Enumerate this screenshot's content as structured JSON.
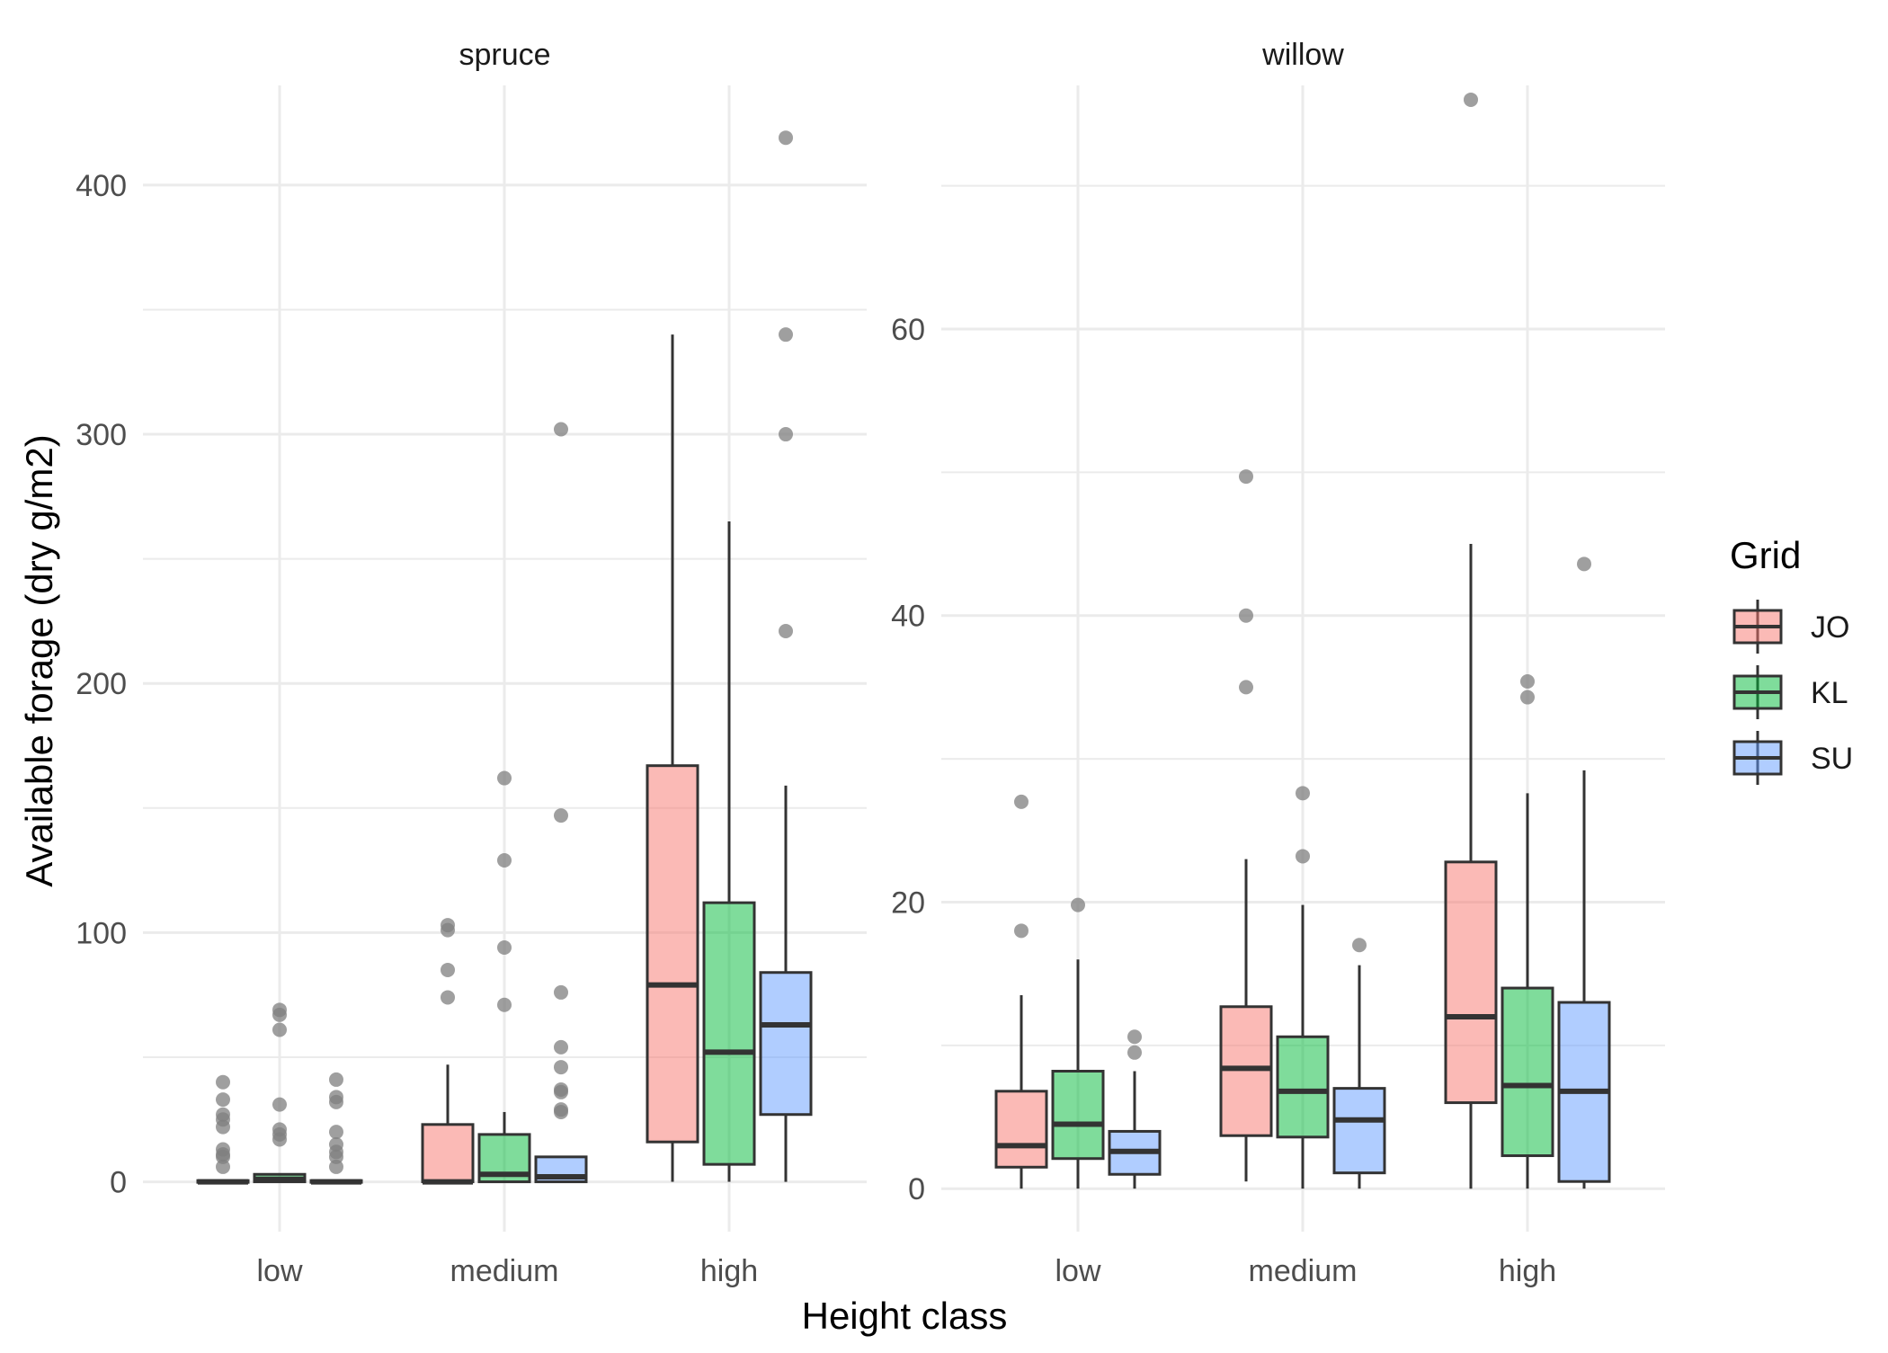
{
  "chart_data": {
    "type": "boxplot",
    "xlabel": "Height class",
    "ylabel": "Available forage (dry g/m2)",
    "categories": [
      "low",
      "medium",
      "high"
    ],
    "legend": {
      "title": "Grid",
      "position": "right",
      "entries": [
        {
          "name": "JO",
          "color": "#F8766D"
        },
        {
          "name": "KL",
          "color": "#00BA38"
        },
        {
          "name": "SU",
          "color": "#619CFF"
        }
      ]
    },
    "grid": true,
    "panels": [
      {
        "title": "spruce",
        "ylim": [
          -20,
          440
        ],
        "yticks": [
          0,
          100,
          200,
          300,
          400
        ],
        "ytick_labels": [
          "0",
          "100",
          "200",
          "300",
          "400"
        ],
        "boxes": [
          {
            "category": "low",
            "group": "JO",
            "lower": 0,
            "q1": 0,
            "median": 0,
            "q3": 0.5,
            "upper": 0.5,
            "outliers": [
              40,
              33,
              27,
              25,
              22,
              13,
              11,
              10,
              6
            ]
          },
          {
            "category": "low",
            "group": "KL",
            "lower": 0,
            "q1": 0,
            "median": 1,
            "q3": 3,
            "upper": 3,
            "outliers": [
              69,
              67,
              61,
              31,
              21,
              19,
              17
            ]
          },
          {
            "category": "low",
            "group": "SU",
            "lower": 0,
            "q1": 0,
            "median": 0,
            "q3": 0.5,
            "upper": 0.5,
            "outliers": [
              41,
              34,
              32,
              20,
              15,
              12,
              10,
              6
            ]
          },
          {
            "category": "medium",
            "group": "JO",
            "lower": 0,
            "q1": 0,
            "median": 0,
            "q3": 23,
            "upper": 47,
            "outliers": [
              103,
              101,
              85,
              74
            ]
          },
          {
            "category": "medium",
            "group": "KL",
            "lower": 0,
            "q1": 0,
            "median": 3,
            "q3": 19,
            "upper": 28,
            "outliers": [
              162,
              129,
              94,
              71
            ]
          },
          {
            "category": "medium",
            "group": "SU",
            "lower": 0,
            "q1": 0,
            "median": 2,
            "q3": 10,
            "upper": 10,
            "outliers": [
              302,
              147,
              76,
              54,
              46,
              37,
              36,
              29,
              28
            ]
          },
          {
            "category": "high",
            "group": "JO",
            "lower": 0,
            "q1": 16,
            "median": 79,
            "q3": 167,
            "upper": 340,
            "outliers": []
          },
          {
            "category": "high",
            "group": "KL",
            "lower": 0,
            "q1": 7,
            "median": 52,
            "q3": 112,
            "upper": 265,
            "outliers": []
          },
          {
            "category": "high",
            "group": "SU",
            "lower": 0,
            "q1": 27,
            "median": 63,
            "q3": 84,
            "upper": 159,
            "outliers": [
              419,
              340,
              300,
              221
            ]
          }
        ]
      },
      {
        "title": "willow",
        "ylim": [
          -3,
          77
        ],
        "yticks": [
          0,
          20,
          40,
          60
        ],
        "ytick_labels": [
          "0",
          "20",
          "40",
          "60"
        ],
        "boxes": [
          {
            "category": "low",
            "group": "JO",
            "lower": 0,
            "q1": 1.5,
            "median": 3,
            "q3": 6.8,
            "upper": 13.5,
            "outliers": [
              27,
              18
            ]
          },
          {
            "category": "low",
            "group": "KL",
            "lower": 0,
            "q1": 2.1,
            "median": 4.5,
            "q3": 8.2,
            "upper": 16,
            "outliers": [
              19.8
            ]
          },
          {
            "category": "low",
            "group": "SU",
            "lower": 0,
            "q1": 1,
            "median": 2.6,
            "q3": 4,
            "upper": 8.2,
            "outliers": [
              10.6,
              9.5
            ]
          },
          {
            "category": "medium",
            "group": "JO",
            "lower": 0.5,
            "q1": 3.7,
            "median": 8.4,
            "q3": 12.7,
            "upper": 23,
            "outliers": [
              49.7,
              40,
              35
            ]
          },
          {
            "category": "medium",
            "group": "KL",
            "lower": 0,
            "q1": 3.6,
            "median": 6.8,
            "q3": 10.6,
            "upper": 19.8,
            "outliers": [
              27.6,
              23.2
            ]
          },
          {
            "category": "medium",
            "group": "SU",
            "lower": 0,
            "q1": 1.1,
            "median": 4.8,
            "q3": 7,
            "upper": 15.6,
            "outliers": [
              17
            ]
          },
          {
            "category": "high",
            "group": "JO",
            "lower": 0,
            "q1": 6,
            "median": 12,
            "q3": 22.8,
            "upper": 45,
            "outliers": [
              76
            ]
          },
          {
            "category": "high",
            "group": "KL",
            "lower": 0,
            "q1": 2.3,
            "median": 7.2,
            "q3": 14,
            "upper": 27.6,
            "outliers": [
              35.4,
              34.3
            ]
          },
          {
            "category": "high",
            "group": "SU",
            "lower": 0,
            "q1": 0.5,
            "median": 6.8,
            "q3": 13,
            "upper": 29.2,
            "outliers": [
              43.6
            ]
          }
        ]
      }
    ]
  }
}
